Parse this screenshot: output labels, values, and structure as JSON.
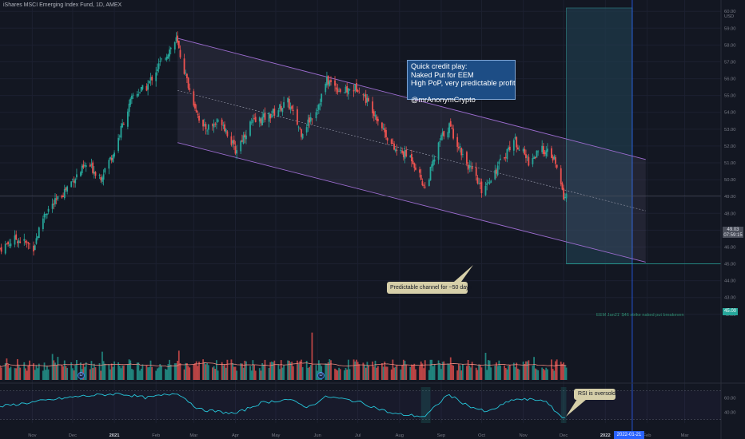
{
  "header": {
    "title": "iShares MSCI Emerging Index Fund, 1D, AMEX"
  },
  "note_box": {
    "lines": [
      "Quick credit play:",
      "Naked Put for EEM",
      "High PoP, very predictable profit",
      "",
      "@mrAnonymCrypto"
    ]
  },
  "callouts": {
    "channel": "Predictable channel for ~50 days",
    "rsi": "RSI is oversold",
    "breakeven": "EEM Jan21' $46 strike naked put breakeven"
  },
  "volume_badges": [
    "D",
    "D"
  ],
  "tags": {
    "price_line1": "49.03",
    "price_line2": "07:59:15",
    "breakeven_price": "45.00",
    "expiry_date": "2022-01-21"
  },
  "colors": {
    "background": "#131722",
    "up": "#26a69a",
    "down": "#ef5350",
    "channel": "#9c6ccf",
    "note_fill": "#1d4d85",
    "callout_fill": "#d6cfa9",
    "rsi_line": "#26c6da",
    "volume_ma": "#ef8a80",
    "projection": "#1f3a4a"
  },
  "chart_data": [
    {
      "type": "candlestick",
      "title": "iShares MSCI Emerging Index Fund, 1D, AMEX",
      "currency": "USD",
      "y_ticks": [
        42.0,
        43.0,
        44.0,
        45.0,
        46.0,
        47.0,
        48.0,
        49.0,
        50.0,
        51.0,
        52.0,
        53.0,
        54.0,
        55.0,
        56.0,
        57.0,
        58.0,
        59.0,
        60.0
      ],
      "ylim": [
        41.8,
        60.2
      ],
      "x_ticks": [
        "Nov",
        "Dec",
        "2021",
        "Feb",
        "Mar",
        "Apr",
        "May",
        "Jun",
        "Jul",
        "Aug",
        "Sep",
        "Oct",
        "Nov",
        "Dec",
        "2022",
        "Feb",
        "Mar"
      ],
      "x_tick_dates": [
        "2020-11-01",
        "2020-12-01",
        "2021-01-01",
        "2021-02-01",
        "2021-03-01",
        "2021-04-01",
        "2021-05-01",
        "2021-06-01",
        "2021-07-01",
        "2021-08-01",
        "2021-09-01",
        "2021-10-01",
        "2021-11-01",
        "2021-12-01",
        "2022-01-01",
        "2022-02-01",
        "2022-03-01"
      ],
      "xlim": [
        "2020-10-08",
        "2022-03-28"
      ],
      "price_path": [
        {
          "date": "2020-10-08",
          "close": 45.9
        },
        {
          "date": "2020-10-20",
          "close": 46.5
        },
        {
          "date": "2020-11-02",
          "close": 46.0
        },
        {
          "date": "2020-11-10",
          "close": 48.0
        },
        {
          "date": "2020-11-20",
          "close": 48.8
        },
        {
          "date": "2020-12-01",
          "close": 50.0
        },
        {
          "date": "2020-12-12",
          "close": 50.9
        },
        {
          "date": "2020-12-22",
          "close": 50.2
        },
        {
          "date": "2021-01-01",
          "close": 51.7
        },
        {
          "date": "2021-01-08",
          "close": 53.5
        },
        {
          "date": "2021-01-15",
          "close": 55.0
        },
        {
          "date": "2021-01-25",
          "close": 55.5
        },
        {
          "date": "2021-02-03",
          "close": 56.8
        },
        {
          "date": "2021-02-16",
          "close": 58.3
        },
        {
          "date": "2021-02-26",
          "close": 55.3
        },
        {
          "date": "2021-03-08",
          "close": 53.0
        },
        {
          "date": "2021-03-22",
          "close": 53.5
        },
        {
          "date": "2021-04-01",
          "close": 51.7
        },
        {
          "date": "2021-04-12",
          "close": 53.3
        },
        {
          "date": "2021-04-26",
          "close": 53.8
        },
        {
          "date": "2021-05-10",
          "close": 54.6
        },
        {
          "date": "2021-05-20",
          "close": 52.8
        },
        {
          "date": "2021-06-01",
          "close": 54.3
        },
        {
          "date": "2021-06-08",
          "close": 55.9
        },
        {
          "date": "2021-06-20",
          "close": 55.2
        },
        {
          "date": "2021-07-01",
          "close": 55.5
        },
        {
          "date": "2021-07-12",
          "close": 54.2
        },
        {
          "date": "2021-07-28",
          "close": 51.8
        },
        {
          "date": "2021-08-10",
          "close": 51.3
        },
        {
          "date": "2021-08-20",
          "close": 49.5
        },
        {
          "date": "2021-09-01",
          "close": 52.5
        },
        {
          "date": "2021-09-07",
          "close": 53.2
        },
        {
          "date": "2021-09-20",
          "close": 51.0
        },
        {
          "date": "2021-10-01",
          "close": 49.4
        },
        {
          "date": "2021-10-12",
          "close": 50.6
        },
        {
          "date": "2021-10-25",
          "close": 52.4
        },
        {
          "date": "2021-11-05",
          "close": 51.1
        },
        {
          "date": "2021-11-16",
          "close": 51.8
        },
        {
          "date": "2021-11-24",
          "close": 51.2
        },
        {
          "date": "2021-12-01",
          "close": 49.0
        },
        {
          "date": "2021-12-03",
          "close": 49.03
        }
      ],
      "channel": {
        "upper": [
          {
            "date": "2021-02-17",
            "value": 58.4
          },
          {
            "date": "2022-01-31",
            "value": 51.2
          }
        ],
        "lower": [
          {
            "date": "2021-02-17",
            "value": 52.2
          },
          {
            "date": "2022-01-31",
            "value": 45.1
          }
        ],
        "midline": [
          {
            "date": "2021-02-17",
            "value": 55.3
          },
          {
            "date": "2022-01-31",
            "value": 48.15
          }
        ]
      },
      "projection_zone": {
        "start": "2021-12-03",
        "end": "2022-01-21",
        "top": 60.2,
        "bottom": 45.0
      },
      "breakeven_level": 45.0,
      "current_price": 49.03
    },
    {
      "type": "bar",
      "title": "Volume",
      "ma_line": true
    },
    {
      "type": "line",
      "title": "RSI",
      "y_ticks": [
        40.0,
        60.0
      ],
      "levels": [
        70,
        30
      ],
      "ylim": [
        25,
        75
      ],
      "rsi_path": [
        {
          "date": "2020-10-08",
          "value": 48
        },
        {
          "date": "2020-11-05",
          "value": 55
        },
        {
          "date": "2020-12-05",
          "value": 62
        },
        {
          "date": "2021-01-05",
          "value": 66
        },
        {
          "date": "2021-01-25",
          "value": 60
        },
        {
          "date": "2021-02-17",
          "value": 67
        },
        {
          "date": "2021-03-05",
          "value": 44
        },
        {
          "date": "2021-04-01",
          "value": 38
        },
        {
          "date": "2021-04-20",
          "value": 53
        },
        {
          "date": "2021-05-10",
          "value": 58
        },
        {
          "date": "2021-05-25",
          "value": 47
        },
        {
          "date": "2021-06-08",
          "value": 62
        },
        {
          "date": "2021-07-01",
          "value": 55
        },
        {
          "date": "2021-07-27",
          "value": 38
        },
        {
          "date": "2021-08-20",
          "value": 34
        },
        {
          "date": "2021-09-06",
          "value": 65
        },
        {
          "date": "2021-09-20",
          "value": 50
        },
        {
          "date": "2021-10-05",
          "value": 40
        },
        {
          "date": "2021-10-25",
          "value": 58
        },
        {
          "date": "2021-11-16",
          "value": 57
        },
        {
          "date": "2021-12-01",
          "value": 31
        },
        {
          "date": "2021-12-03",
          "value": 33
        }
      ]
    }
  ]
}
